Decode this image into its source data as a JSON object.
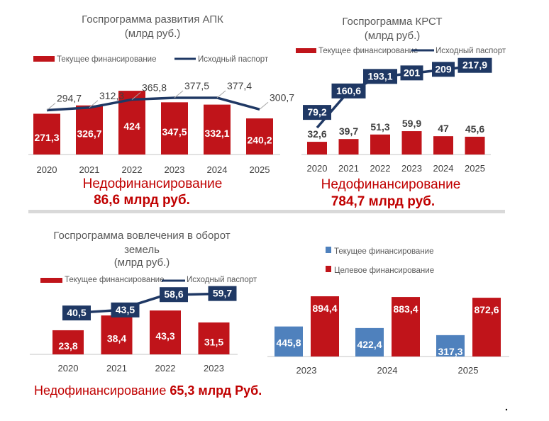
{
  "colors": {
    "bar_red": "#c0141a",
    "line_navy": "#1f3864",
    "bar_blue": "#4f81bd",
    "deficit_red": "#c00000"
  },
  "chart_data": [
    {
      "type": "bar",
      "title": "Госпрограмма развития АПК",
      "subtitle": "(млрд руб.)",
      "categories": [
        "2020",
        "2021",
        "2022",
        "2023",
        "2024",
        "2025"
      ],
      "series": [
        {
          "name": "Текущее финансирование",
          "kind": "bar",
          "values": [
            271.3,
            326.7,
            424,
            347.5,
            332.1,
            240.2
          ],
          "labels": [
            "271,3",
            "326,7",
            "424",
            "347,5",
            "332,1",
            "240,2"
          ]
        },
        {
          "name": "Исходный паспорт",
          "kind": "line",
          "values": [
            294.7,
            312.3,
            365.8,
            377.5,
            377.4,
            300.7
          ],
          "labels": [
            "294,7",
            "312,3",
            "365,8",
            "377,5",
            "377,4",
            "300,7"
          ]
        }
      ],
      "legend": "top",
      "note_line1": "Недофинансирование",
      "note_line2": "86,6 млрд руб."
    },
    {
      "type": "bar",
      "title": "Госпрограмма КРСТ",
      "subtitle": "(млрд руб.)",
      "categories": [
        "2020",
        "2021",
        "2022",
        "2023",
        "2024",
        "2025"
      ],
      "series": [
        {
          "name": "Текущее финансирование",
          "kind": "bar",
          "values": [
            32.6,
            39.7,
            51.3,
            59.9,
            47,
            45.6
          ],
          "labels": [
            "32,6",
            "39,7",
            "51,3",
            "59,9",
            "47",
            "45,6"
          ]
        },
        {
          "name": "Исходный паспорт",
          "kind": "line",
          "values": [
            79.2,
            160.6,
            193.1,
            201,
            209,
            217.9
          ],
          "labels": [
            "79,2",
            "160,6",
            "193,1",
            "201",
            "209",
            "217,9"
          ]
        }
      ],
      "legend": "top",
      "note_line1": "Недофинансирование",
      "note_line2": "784,7 млрд руб."
    },
    {
      "type": "bar",
      "title": "Госпрограмма вовлечения в оборот",
      "title_line2": "земель",
      "subtitle": "(млрд руб.)",
      "categories": [
        "2020",
        "2021",
        "2022",
        "2023"
      ],
      "series": [
        {
          "name": "Текущее финансирование",
          "kind": "bar",
          "values": [
            23.8,
            38.4,
            43.3,
            31.5
          ],
          "labels": [
            "23,8",
            "38,4",
            "43,3",
            "31,5"
          ]
        },
        {
          "name": "Исходный паспорт",
          "kind": "line",
          "values": [
            40.5,
            43.5,
            58.6,
            59.7
          ],
          "labels": [
            "40,5",
            "43,5",
            "58,6",
            "59,7"
          ]
        }
      ],
      "legend": "top",
      "note_prefix": "Недофинансирование ",
      "note_value": "65,3  млрд Руб."
    },
    {
      "type": "bar",
      "categories": [
        "2023",
        "2024",
        "2025"
      ],
      "series": [
        {
          "name": "Текущее финансирование",
          "values": [
            445.8,
            422.4,
            317.3
          ],
          "labels": [
            "445,8",
            "422,4",
            "317,3"
          ]
        },
        {
          "name": "Целевое финансирование",
          "values": [
            894.4,
            883.4,
            872.6
          ],
          "labels": [
            "894,4",
            "883,4",
            "872,6"
          ]
        }
      ],
      "legend": "top"
    }
  ]
}
